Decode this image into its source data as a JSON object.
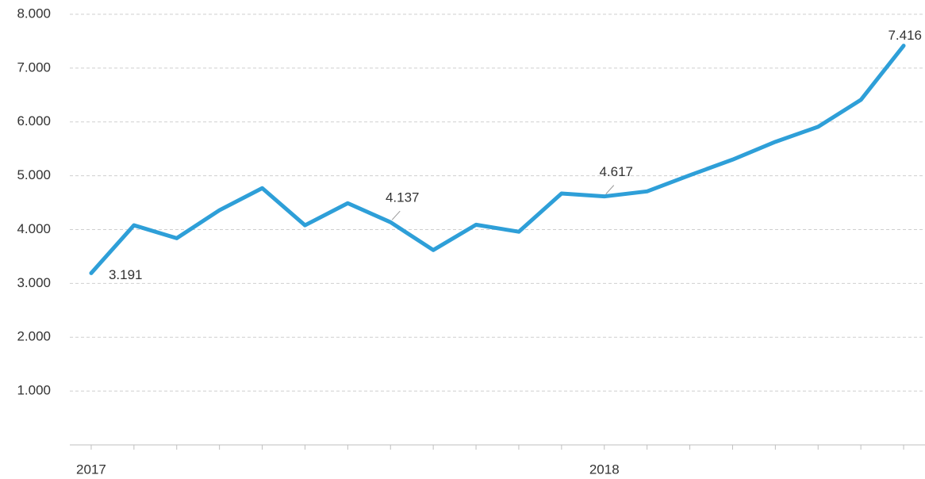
{
  "chart_data": {
    "type": "line",
    "categories": [
      "2017",
      null,
      null,
      null,
      null,
      null,
      null,
      null,
      null,
      null,
      null,
      null,
      "2018",
      null,
      null,
      null,
      null,
      null,
      null,
      null
    ],
    "series": [
      {
        "color": "#2e9fd8",
        "values": [
          3191,
          4080,
          3840,
          4360,
          4770,
          4080,
          4490,
          4137,
          3620,
          4090,
          3960,
          4670,
          4617,
          4710,
          5010,
          5300,
          5630,
          5910,
          6410,
          7416
        ],
        "value_labels": [
          "3.191",
          null,
          null,
          null,
          null,
          null,
          null,
          "4.137",
          null,
          null,
          null,
          null,
          "4.617",
          null,
          null,
          null,
          null,
          null,
          null,
          "7.416"
        ]
      }
    ],
    "ylim": [
      0,
      8000
    ],
    "yticks": [
      {
        "value": 1000,
        "label": "1.000"
      },
      {
        "value": 2000,
        "label": "2.000"
      },
      {
        "value": 3000,
        "label": "3.000"
      },
      {
        "value": 4000,
        "label": "4.000"
      },
      {
        "value": 5000,
        "label": "5.000"
      },
      {
        "value": 6000,
        "label": "6.000"
      },
      {
        "value": 7000,
        "label": "7.000"
      },
      {
        "value": 8000,
        "label": "8.000"
      }
    ],
    "grid": true
  }
}
